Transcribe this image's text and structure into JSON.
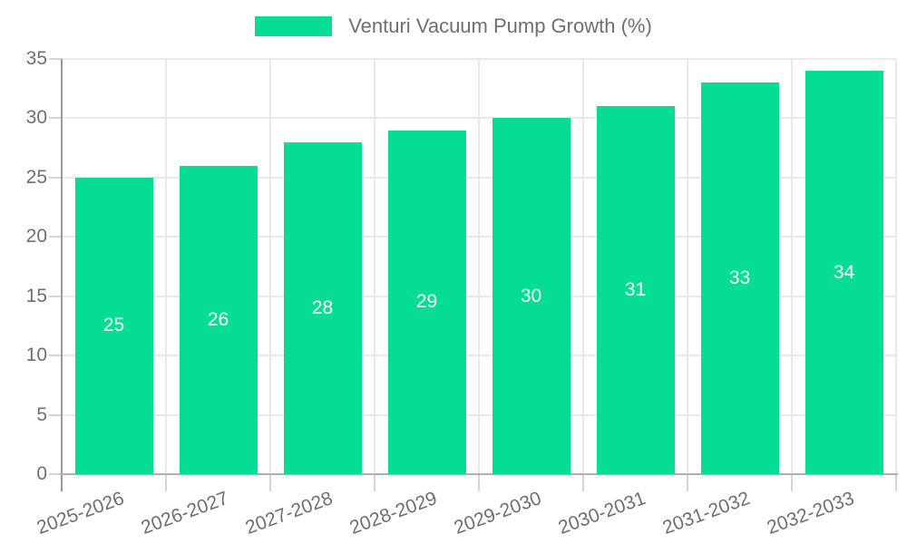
{
  "chart": {
    "legend_label": "Venturi Vacuum Pump Growth (%)",
    "colors": {
      "bar": "#05dd94",
      "grid": "#e9e9e9",
      "y_axis_line": "#9a9a9a",
      "x_axis_line": "#b0b0b0",
      "tick": "#d5d5d5",
      "text": "#6f6f6f",
      "value_label": "#ffffff",
      "background": "#ffffff"
    }
  },
  "chart_data": {
    "type": "bar",
    "title": "",
    "categories": [
      "2025-2026",
      "2026-2027",
      "2027-2028",
      "2028-2029",
      "2029-2030",
      "2030-2031",
      "2031-2032",
      "2032-2033"
    ],
    "values": [
      25,
      26,
      28,
      29,
      30,
      31,
      33,
      34
    ],
    "series": [
      {
        "name": "Venturi Vacuum Pump Growth (%)",
        "values": [
          25,
          26,
          28,
          29,
          30,
          31,
          33,
          34
        ]
      }
    ],
    "xlabel": "",
    "ylabel": "",
    "ylim": [
      0,
      35
    ],
    "yticks": [
      0,
      5,
      10,
      15,
      20,
      25,
      30,
      35
    ],
    "grid": true,
    "legend_position": "top-center",
    "bar_color": "#05dd94",
    "value_labels": "white, centered inside each bar",
    "x_tick_label_rotation_deg": -20
  }
}
